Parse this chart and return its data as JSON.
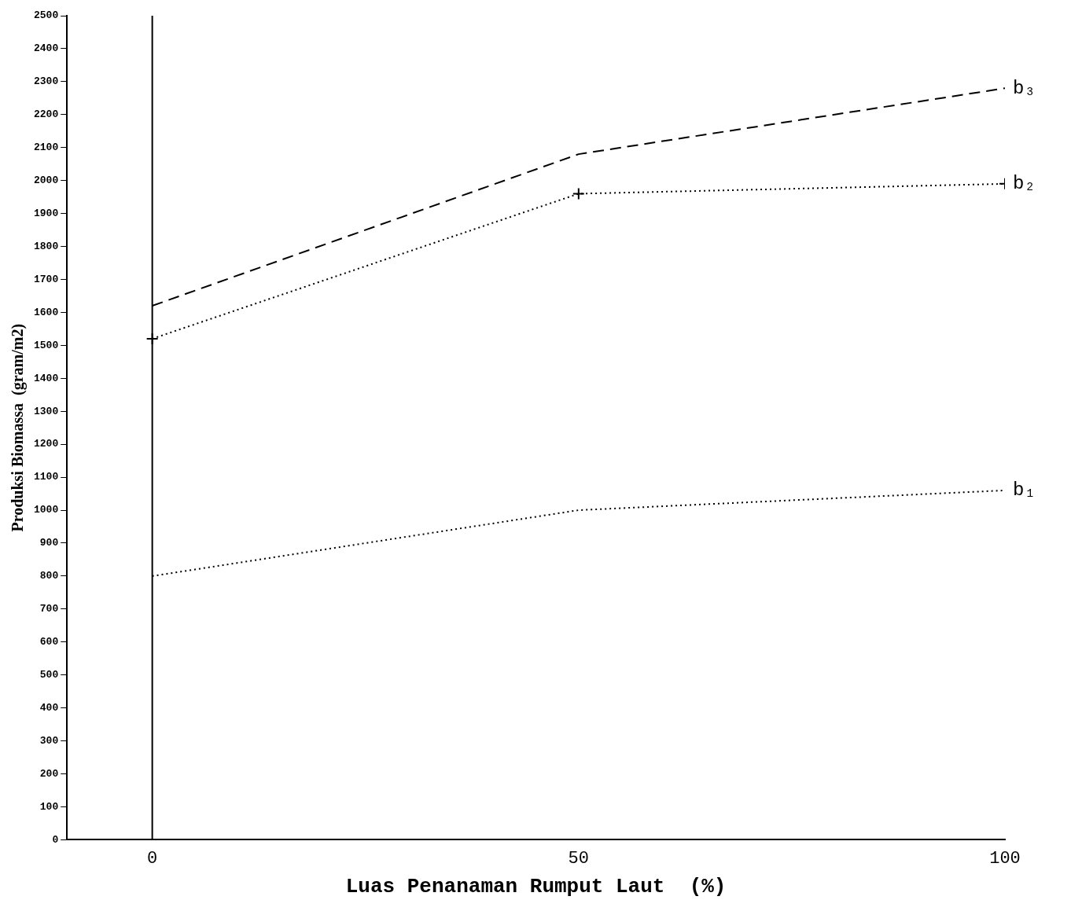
{
  "chart_data": {
    "type": "line",
    "xlabel": "Luas Penanaman Rumput Laut  (%)",
    "ylabel": "Produksi Biomassa  (gram/m2)",
    "x": [
      0,
      50,
      100
    ],
    "xlim": [
      -10,
      100
    ],
    "xticks": [
      0,
      50,
      100
    ],
    "ylim": [
      0,
      2500
    ],
    "yticks": [
      0,
      100,
      200,
      300,
      400,
      500,
      600,
      700,
      800,
      900,
      1000,
      1100,
      1200,
      1300,
      1400,
      1500,
      1600,
      1700,
      1800,
      1900,
      2000,
      2100,
      2200,
      2300,
      2400,
      2500
    ],
    "grid": false,
    "legend": false,
    "ref_lines": [
      {
        "axis": "x",
        "value": 0,
        "color": "#000000",
        "line_style": "solid"
      }
    ],
    "series": [
      {
        "name": "b₃",
        "color": "#000000",
        "values": [
          1620,
          2080,
          2280
        ],
        "line_style": "dashed",
        "marker": "none"
      },
      {
        "name": "b₂",
        "color": "#000000",
        "values": [
          1520,
          1960,
          1990
        ],
        "line_style": "dotted",
        "marker": "cross"
      },
      {
        "name": "b₁",
        "color": "#000000",
        "values": [
          800,
          1000,
          1060
        ],
        "line_style": "dotted",
        "marker": "none"
      }
    ]
  }
}
